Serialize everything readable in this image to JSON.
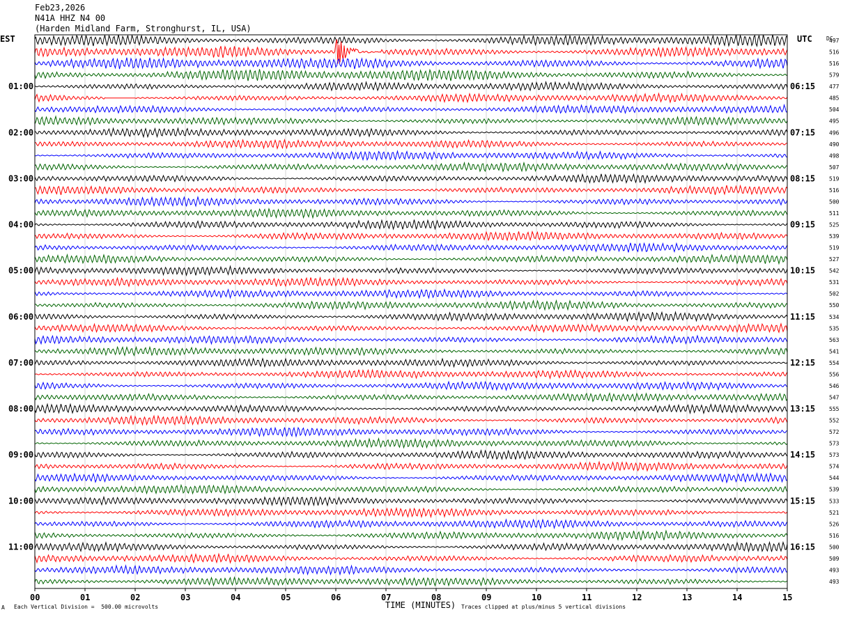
{
  "header": {
    "date": "Feb23,2026",
    "station": "N41A HHZ N4 00",
    "location": "(Harden Midland Farm, Stronghurst, IL, USA)"
  },
  "axes": {
    "left_label": "EST",
    "right_label": "UTC",
    "dc_label": "DC",
    "xlabel": "TIME (MINUTES)",
    "x_ticks": [
      "00",
      "01",
      "02",
      "03",
      "04",
      "05",
      "06",
      "07",
      "08",
      "09",
      "10",
      "11",
      "12",
      "13",
      "14",
      "15"
    ],
    "left_hours": [
      "01:00",
      "02:00",
      "03:00",
      "04:00",
      "05:00",
      "06:00",
      "07:00",
      "08:00",
      "09:00",
      "10:00",
      "11:00"
    ],
    "right_hours": [
      "06:15",
      "07:15",
      "08:15",
      "09:15",
      "10:15",
      "11:15",
      "12:15",
      "13:15",
      "14:15",
      "15:15",
      "16:15"
    ]
  },
  "footer": {
    "scale_note": "Each Vertical Division =  500.00 microvolts",
    "clip_note": "Traces clipped at plus/minus 5 vertical divisions",
    "corner_mark": "A"
  },
  "chart_data": {
    "type": "line",
    "title": "N41A HHZ N4 00",
    "xlabel": "TIME (MINUTES)",
    "ylabel": "",
    "xlim": [
      0,
      15
    ],
    "trace_colors": [
      "#000000",
      "#ff0000",
      "#0000ff",
      "#006400"
    ],
    "trace_minutes": 15,
    "trace_count": 48,
    "dc_offsets": [
      497,
      516,
      516,
      579,
      477,
      485,
      504,
      495,
      496,
      490,
      498,
      507,
      519,
      516,
      500,
      511,
      525,
      539,
      519,
      527,
      542,
      531,
      502,
      550,
      534,
      535,
      563,
      541,
      554,
      556,
      546,
      547,
      555,
      552,
      572,
      573,
      573,
      574,
      544,
      539,
      533,
      521,
      526,
      516,
      500,
      509,
      493,
      493
    ],
    "events": [
      {
        "trace": 1,
        "minute_start": 6.0,
        "minute_end": 6.9,
        "note": "large spike near minute 6"
      },
      {
        "trace": 5,
        "minute_start": 1.4,
        "minute_end": 2.0,
        "note": "flat segment"
      }
    ]
  }
}
